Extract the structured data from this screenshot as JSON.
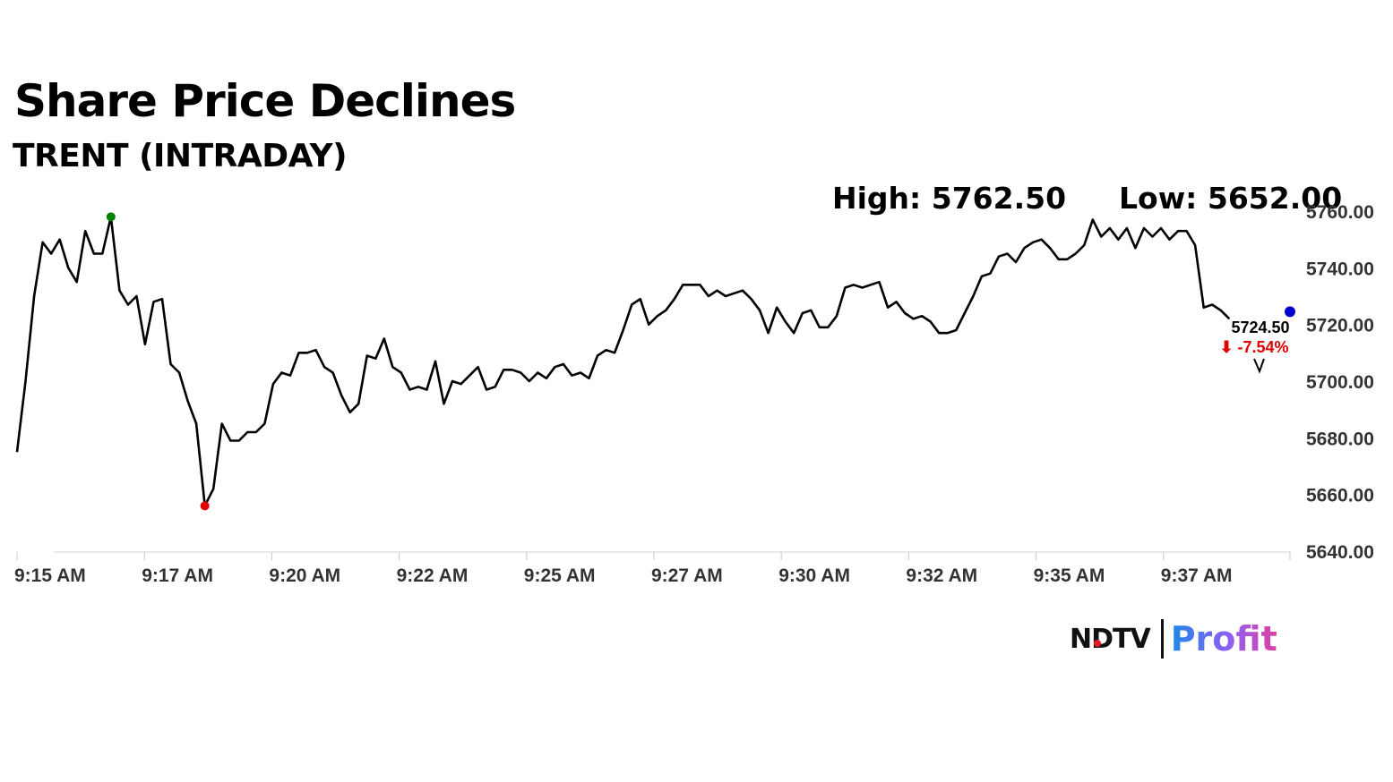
{
  "header": {
    "title": "Share Price Declines",
    "subtitle": "TRENT (INTRADAY)",
    "high_label": "High: 5762.50",
    "low_label": "Low: 5652.00"
  },
  "last": {
    "value_label": "5724.50",
    "change_label": "-7.54%",
    "arrow": "⬇"
  },
  "brand": {
    "ndtv": "NDTV",
    "profit": "Profit"
  },
  "colors": {
    "line": "#000000",
    "high_marker": "#008000",
    "low_marker": "#e00000",
    "last_marker": "#0000cc",
    "change": "#e00000"
  },
  "chart_data": {
    "type": "line",
    "x_ticks": [
      "9:15 AM",
      "9:17 AM",
      "9:20 AM",
      "9:22 AM",
      "9:25 AM",
      "9:27 AM",
      "9:30 AM",
      "9:32 AM",
      "9:35 AM",
      "9:37 AM"
    ],
    "y_ticks": [
      "5760.00",
      "5740.00",
      "5720.00",
      "5700.00",
      "5680.00",
      "5660.00",
      "5640.00"
    ],
    "ylim": [
      5640,
      5760
    ],
    "grid": false,
    "legend": "none",
    "series": [
      {
        "values": [
          5675,
          5700,
          5730,
          5749,
          5745,
          5750,
          5740,
          5735,
          5753,
          5745,
          5745,
          5758,
          5732,
          5727,
          5730,
          5713,
          5728,
          5729,
          5706,
          5703,
          5693,
          5685,
          5656,
          5662,
          5685,
          5679,
          5679,
          5682,
          5682,
          5685,
          5699,
          5703,
          5702,
          5710,
          5710,
          5711,
          5705,
          5703,
          5695,
          5689,
          5692,
          5709,
          5708,
          5715,
          5705,
          5703,
          5697,
          5698,
          5697,
          5707,
          5692,
          5700,
          5699,
          5702,
          5705,
          5697,
          5698,
          5704,
          5704,
          5703,
          5700,
          5703,
          5701,
          5705,
          5706,
          5702,
          5703,
          5701,
          5709,
          5711,
          5710,
          5718,
          5727,
          5729,
          5720,
          5723,
          5725,
          5729,
          5734,
          5734,
          5734,
          5730,
          5732,
          5730,
          5731,
          5732,
          5729,
          5725,
          5717,
          5726,
          5721,
          5717,
          5724,
          5725,
          5719,
          5719,
          5723,
          5733,
          5734,
          5733,
          5734,
          5735,
          5726,
          5728,
          5724,
          5722,
          5723,
          5721,
          5717,
          5717,
          5718,
          5724,
          5730,
          5737,
          5738,
          5744,
          5745,
          5742,
          5747,
          5749,
          5750,
          5747,
          5743,
          5743,
          5745,
          5748,
          5757,
          5751,
          5754,
          5750,
          5754,
          5747,
          5754,
          5751,
          5754,
          5750,
          5753,
          5753,
          5748,
          5726,
          5727,
          5725,
          5722
        ]
      }
    ],
    "high": 5762.5,
    "low": 5652.0,
    "last_value": 5724.5,
    "change_percent": -7.54
  }
}
